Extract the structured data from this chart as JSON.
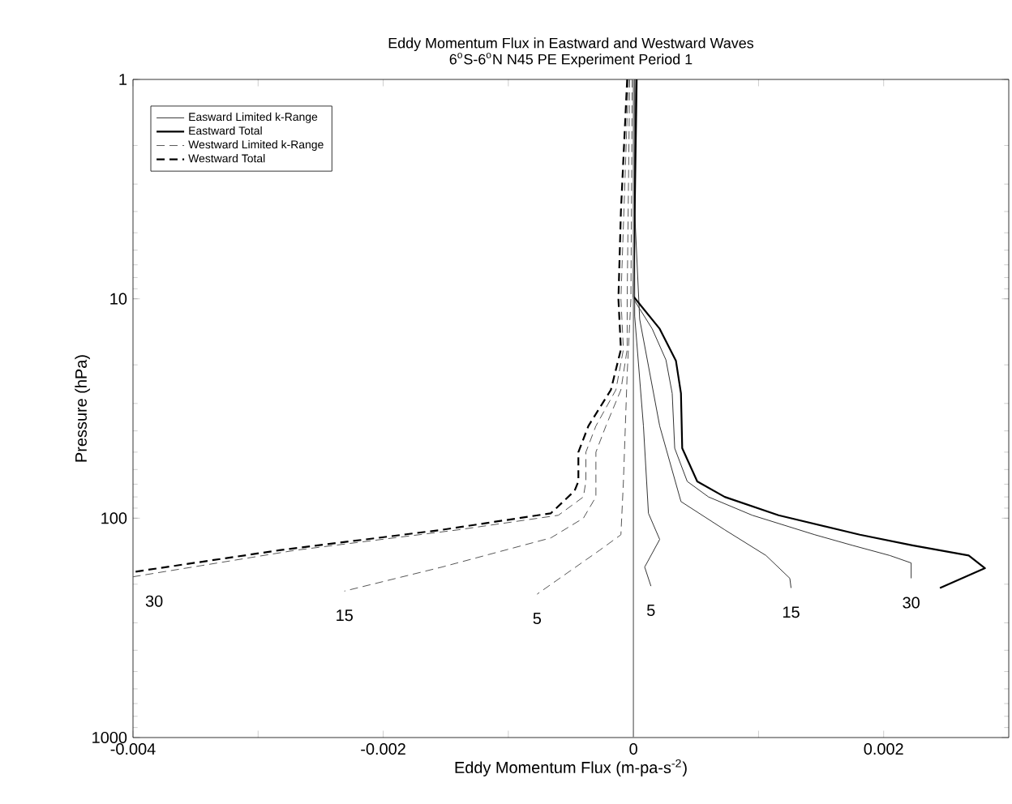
{
  "chart_data": {
    "type": "line",
    "title": "Eddy Momentum Flux in Eastward and Westward Waves",
    "subtitle": "6$^{o}$S-6$^{o}$N N45 PE Experiment Period 1",
    "xlabel": "Eddy Momentum Flux (m-pa-s$^{-2}$)",
    "ylabel": "Pressure (hPa)",
    "xlim": [
      -0.004,
      0.003
    ],
    "xticks": [
      -0.004,
      {
        "value": -0.003,
        "label": null
      },
      -0.002,
      {
        "value": -0.001,
        "label": null
      },
      0,
      {
        "value": 0.001,
        "label": null
      },
      0.002
    ],
    "ylim": [
      1000,
      1
    ],
    "yticks": [
      1,
      10,
      100,
      1000
    ],
    "log": "y",
    "grid": false,
    "legend": "top left",
    "marker": "none",
    "series": [
      {
        "name": "Easward Limited k-Range",
        "color": "#333333",
        "line_style": "solid",
        "x": [
          1e-05,
          1e-05,
          8e-05,
          0.00012,
          0.00021,
          9e-05,
          0.00014
        ],
        "values": [
          1,
          12,
          38,
          95,
          125,
          167,
          204
        ]
      },
      {
        "color": "#333333",
        "line_style": "solid",
        "x": [
          2e-05,
          1e-05,
          5e-05,
          0.00021,
          0.00038,
          0.00073,
          0.00106,
          0.00125,
          0.00126
        ],
        "values": [
          1,
          4,
          12.4,
          38,
          84,
          113,
          148,
          188,
          208
        ]
      },
      {
        "color": "#333333",
        "line_style": "solid",
        "x": [
          2e-05,
          1e-05,
          0,
          0.00015,
          0.00026,
          0.00031,
          0.00033,
          0.00043,
          0.0006,
          0.00095,
          0.00145,
          0.00175,
          0.00205,
          0.00222,
          0.00222
        ],
        "values": [
          1,
          4,
          10,
          13.7,
          19,
          27,
          48,
          68,
          80,
          97,
          119,
          133,
          148,
          160,
          188
        ]
      },
      {
        "name": "Eastward Total",
        "color": "#000000",
        "line_style": "solid",
        "x": [
          2.6e-05,
          1e-05,
          0,
          0.00021,
          0.00034,
          0.00038,
          0.00039,
          0.00051,
          0.00073,
          0.00116,
          0.00181,
          0.00223,
          0.00268,
          0.00281,
          0.00245
        ],
        "values": [
          1,
          4,
          9.75,
          13.7,
          19.2,
          27,
          48,
          68,
          80,
          97,
          119,
          133,
          148,
          169,
          208
        ]
      },
      {
        "name": "Westward Limited k-Range",
        "color": "#555555",
        "line_style": "dashed",
        "x": [
          -1e-05,
          -2e-05,
          -5e-05,
          -8e-05,
          -0.0001,
          -0.00027,
          -0.00077
        ],
        "values": [
          1,
          10,
          22,
          68,
          119,
          140,
          222
        ]
      },
      {
        "color": "#555555",
        "line_style": "dashed",
        "x": [
          -3e-05,
          -5e-05,
          -5e-05,
          -0.0001,
          -0.00022,
          -0.0003,
          -0.0003,
          -0.0004,
          -0.00066,
          -0.00153,
          -0.00231
        ],
        "values": [
          1,
          10,
          17,
          26,
          38,
          50,
          80,
          100,
          123,
          167,
          215
        ]
      },
      {
        "color": "#555555",
        "line_style": "dashed",
        "x": [
          -4e-05,
          -0.0001,
          -8e-05,
          -0.00014,
          -0.0003,
          -0.00038,
          -0.00038,
          -0.0004,
          -0.0006,
          -0.0014,
          -0.0027,
          -0.004
        ],
        "values": [
          1,
          10,
          17,
          26,
          38,
          50,
          68,
          80,
          97,
          113,
          140,
          185
        ]
      },
      {
        "name": "Westward Total",
        "color": "#000000",
        "line_style": "dashed",
        "x": [
          -5e-05,
          -0.0001,
          -0.00012,
          -0.0001,
          -0.00018,
          -0.00036,
          -0.00044,
          -0.00044,
          -0.00047,
          -0.00066,
          -0.00153,
          -0.00283,
          -0.004
        ],
        "values": [
          1,
          4,
          10,
          17,
          26,
          38,
          50,
          68,
          75,
          95,
          113,
          140,
          176
        ]
      }
    ],
    "ref_lines": [
      {
        "axis": "x",
        "value": 0,
        "color": "#888888"
      }
    ],
    "annotations": [
      {
        "text": "30",
        "x": -0.004,
        "y": 185
      },
      {
        "text": "15",
        "x": -0.00231,
        "y": 215
      },
      {
        "text": "5",
        "x": -0.00077,
        "y": 222
      },
      {
        "text": "5",
        "x": 0.00014,
        "y": 204
      },
      {
        "text": "15",
        "x": 0.00126,
        "y": 208
      },
      {
        "text": "30",
        "x": 0.00222,
        "y": 188
      }
    ]
  }
}
